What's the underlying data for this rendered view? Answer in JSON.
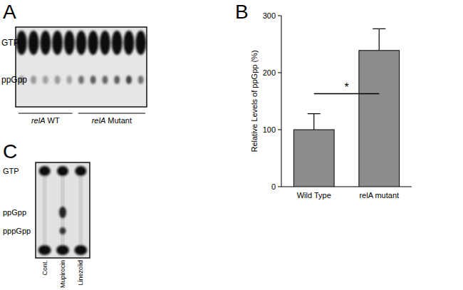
{
  "panel_labels": [
    "A",
    "B",
    "C"
  ],
  "panel_a": {
    "rows": [
      "GTP",
      "ppGpp"
    ],
    "groups": [
      "relA WT",
      "relA Mutant"
    ]
  },
  "chart_data": {
    "type": "bar",
    "ylabel": "Relative Levels of ppGpp (%)",
    "categories": [
      "Wild Type",
      "relA mutant"
    ],
    "values": [
      100,
      239
    ],
    "errors": [
      28,
      38
    ],
    "color": "#8c8c8c",
    "ylim": [
      0,
      300
    ],
    "yticks": [
      0,
      100,
      200,
      300
    ],
    "annotations": [
      "*"
    ]
  },
  "panel_c": {
    "rows": [
      "GTP",
      "ppGpp",
      "pppGpp"
    ],
    "lanes": [
      "Cont.",
      "Mupirocin",
      "Linezolid"
    ]
  }
}
